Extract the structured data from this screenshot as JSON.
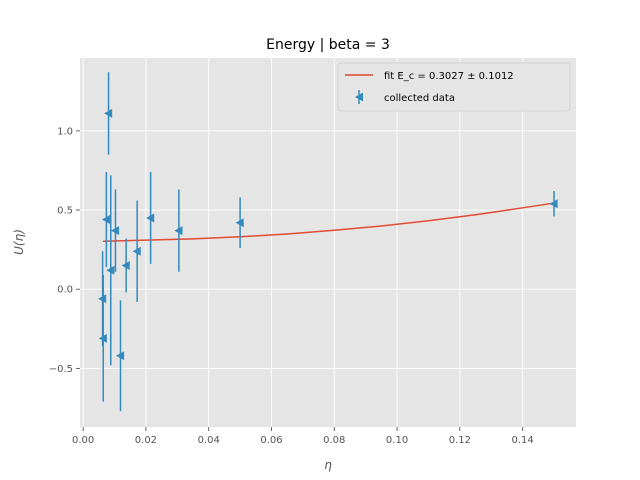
{
  "chart_data": {
    "type": "scatter",
    "title": "Energy | beta = 3",
    "xlabel": "η",
    "ylabel": "U(η)",
    "xlim": [
      -0.001,
      0.157
    ],
    "ylim": [
      -0.87,
      1.46
    ],
    "xticks": [
      0.0,
      0.02,
      0.04,
      0.06,
      0.08,
      0.1,
      0.12,
      0.14
    ],
    "xtick_labels": [
      "0.00",
      "0.02",
      "0.04",
      "0.06",
      "0.08",
      "0.10",
      "0.12",
      "0.14"
    ],
    "yticks": [
      -0.5,
      0.0,
      0.5,
      1.0
    ],
    "ytick_labels": [
      "−0.5",
      "0.0",
      "0.5",
      "1.0"
    ],
    "grid": true,
    "legend_position": "top-right",
    "series": [
      {
        "name": "fit E_c = 0.3027 ± 0.1012",
        "kind": "line",
        "color": "#e24a33",
        "x": [
          0.0063,
          0.02,
          0.035,
          0.05,
          0.065,
          0.08,
          0.095,
          0.11,
          0.125,
          0.14,
          0.15
        ],
        "y": [
          0.303,
          0.31,
          0.318,
          0.331,
          0.349,
          0.372,
          0.399,
          0.432,
          0.47,
          0.514,
          0.544
        ]
      },
      {
        "name": "collected data",
        "kind": "errorbar",
        "color": "#348abd",
        "marker": "triangle-left",
        "x": [
          0.0062,
          0.0064,
          0.0074,
          0.0081,
          0.0088,
          0.0103,
          0.0119,
          0.0137,
          0.0172,
          0.0215,
          0.0305,
          0.05,
          0.15
        ],
        "y": [
          -0.06,
          -0.31,
          0.44,
          1.11,
          0.12,
          0.37,
          -0.42,
          0.15,
          0.24,
          0.45,
          0.37,
          0.42,
          0.54
        ],
        "yerr": [
          0.3,
          0.4,
          0.3,
          0.26,
          0.6,
          0.26,
          0.35,
          0.17,
          0.32,
          0.29,
          0.26,
          0.16,
          0.08
        ]
      }
    ]
  }
}
